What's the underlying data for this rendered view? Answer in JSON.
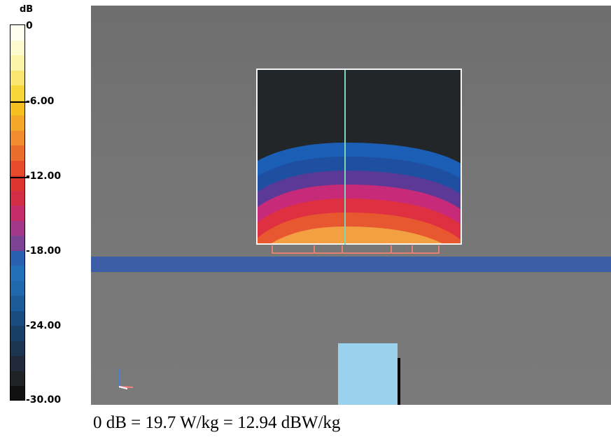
{
  "legend": {
    "unit": "dB",
    "top_label": "0",
    "ticks": [
      "-6.00",
      "-12.00",
      "-18.00",
      "-24.00",
      "-30.00"
    ],
    "band_colors": [
      "#fffff0",
      "#fdfad0",
      "#fbf3a8",
      "#f9e670",
      "#f7d63a",
      "#f5c020",
      "#f3a82a",
      "#f08c2e",
      "#ec6c2c",
      "#e84a2c",
      "#de3430",
      "#d42e46",
      "#c42c6a",
      "#a43888",
      "#7c4294",
      "#2a60b0",
      "#2470b8",
      "#2068ac",
      "#1c5a98",
      "#1a4c80",
      "#1a3f66",
      "#1d3450",
      "#22293a",
      "#1e2224",
      "#111111"
    ]
  },
  "field": {
    "contour_colors": [
      "#1a5fb5",
      "#1f4fa0",
      "#5a3a96",
      "#c72a78",
      "#de3040",
      "#e85830",
      "#f3a042"
    ]
  },
  "caption": "0 dB = 19.7 W/kg = 12.94 dBW/kg",
  "colors": {
    "viewport_bg": "#727272",
    "strip": "#3c5ea6",
    "block": "#9ad1ec",
    "axis_line": "#7fd6b6"
  }
}
